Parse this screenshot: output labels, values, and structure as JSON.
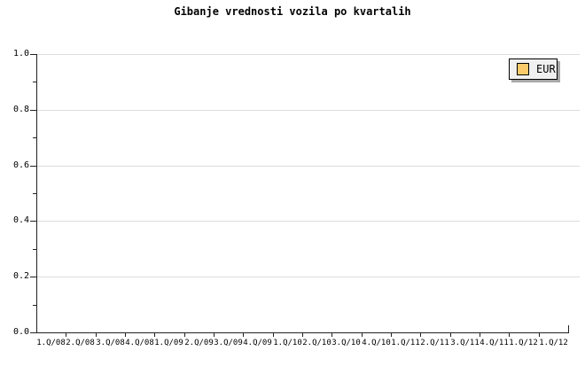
{
  "title": "Gibanje vrednosti vozila po kvartalih",
  "legend": {
    "label": "EUR",
    "position": "top-right"
  },
  "colors": {
    "background": "#FFFFFF",
    "grid": "#DCDCDC",
    "axis": "#222222",
    "text": "#000000",
    "legend_bg": "#F0F0F0",
    "legend_border": "#000000",
    "legend_shadow": "#A8A8A8",
    "swatch": "#FBCB6B",
    "swatch_border": "#000000"
  },
  "chart_data": {
    "type": "line",
    "title": "Gibanje vrednosti vozila po kvartalih",
    "categories": [
      "1.Q/08",
      "2.Q/08",
      "3.Q/08",
      "4.Q/08",
      "1.Q/09",
      "2.Q/09",
      "3.Q/09",
      "4.Q/09",
      "1.Q/10",
      "2.Q/10",
      "3.Q/10",
      "4.Q/10",
      "1.Q/11",
      "2.Q/11",
      "3.Q/11",
      "4.Q/11",
      "1.Q/12",
      "1.Q/12"
    ],
    "series": [
      {
        "name": "EUR",
        "color": "#FBCB6B",
        "values": []
      }
    ],
    "xlabel": "",
    "ylabel": "",
    "ylim": [
      0.0,
      1.0
    ],
    "y_ticks": [
      0.0,
      0.2,
      0.4,
      0.6,
      0.8,
      1.0
    ],
    "y_tick_labels": [
      "0.0",
      "0.2",
      "0.4",
      "0.6",
      "0.8",
      "1.0"
    ],
    "y_minor_tick_step": 0.1,
    "grid": "horizontal",
    "legend_position": "top-right"
  }
}
